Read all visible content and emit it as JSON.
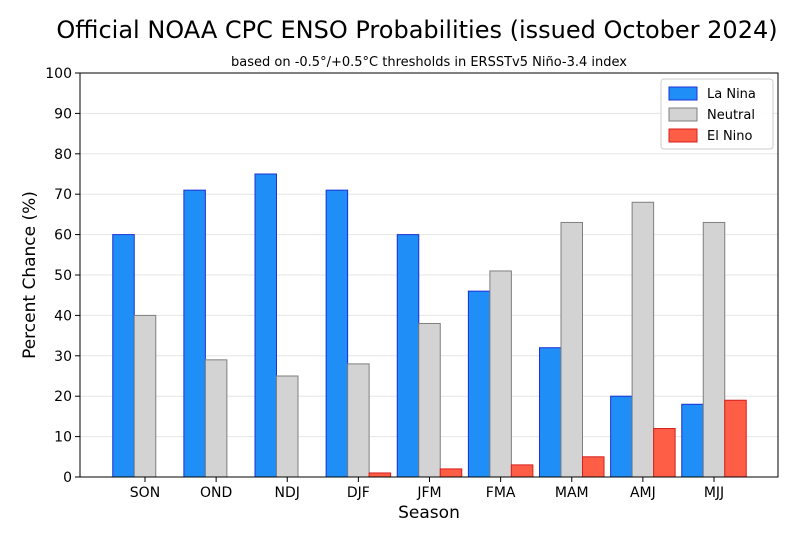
{
  "chart_data": {
    "type": "bar",
    "title": "Official NOAA CPC ENSO Probabilities (issued October 2024)",
    "subtitle": "based on -0.5°/+0.5°C thresholds in ERSSTv5 Niño-3.4 index",
    "xlabel": "Season",
    "ylabel": "Percent Chance (%)",
    "ylim": [
      0,
      100
    ],
    "yticks": [
      0,
      10,
      20,
      30,
      40,
      50,
      60,
      70,
      80,
      90,
      100
    ],
    "grid": "horizontal",
    "legend_position": "top-right",
    "categories": [
      "SON",
      "OND",
      "NDJ",
      "DJF",
      "JFM",
      "FMA",
      "MAM",
      "AMJ",
      "MJJ"
    ],
    "series": [
      {
        "name": "La Nina",
        "color": "#1f8ff7",
        "edge": "#1d2fd6",
        "values": [
          60,
          71,
          75,
          71,
          60,
          46,
          32,
          20,
          18
        ]
      },
      {
        "name": "Neutral",
        "color": "#d3d3d3",
        "edge": "#7f7f7f",
        "values": [
          40,
          29,
          25,
          28,
          38,
          51,
          63,
          68,
          63
        ]
      },
      {
        "name": "El Nino",
        "color": "#fe5e45",
        "edge": "#d81e1e",
        "values": [
          0,
          0,
          0,
          1,
          2,
          3,
          5,
          12,
          19
        ]
      }
    ]
  }
}
